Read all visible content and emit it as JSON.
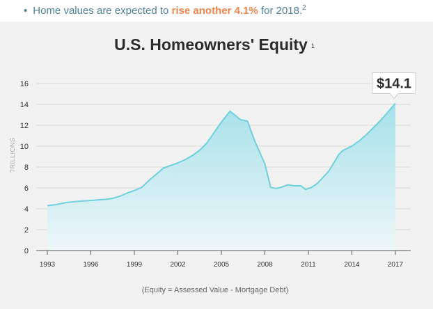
{
  "bullet": {
    "marker": "•",
    "text_before": "Home values are expected to ",
    "highlight": "rise another 4.1%",
    "text_after": " for 2018.",
    "footnote": "2"
  },
  "colors": {
    "line": "#6fd0dc",
    "fill_top": "#a6e1ea",
    "fill_bottom": "#eef7f9",
    "highlight": "#f0844a",
    "bullet_text": "#4a7f94",
    "panel_bg": "#f2f2f2"
  },
  "chart_data": {
    "type": "area",
    "title": "U.S. Homeowners' Equity",
    "title_footnote": "1",
    "ylabel": "TRILLIONS",
    "xlabel": "",
    "ylim": [
      0,
      16
    ],
    "xlim": [
      1993,
      2017
    ],
    "yticks": [
      "0",
      "2",
      "4",
      "6",
      "8",
      "10",
      "12",
      "14",
      "16"
    ],
    "xticks": [
      "1993",
      "1996",
      "1999",
      "2002",
      "2005",
      "2008",
      "2011",
      "2014",
      "2017"
    ],
    "grid": true,
    "callout": {
      "x": 2017,
      "y": 14.1,
      "label": "$14.1"
    },
    "note": "(Equity = Assessed Value - Mortgage Debt)",
    "series": [
      {
        "x": [
          1993,
          1993.6,
          1994.3,
          1995,
          1995.5,
          1996,
          1996.5,
          1997,
          1997.5,
          1998,
          1998.5,
          1999,
          1999.5,
          2000,
          2000.5,
          2001,
          2001.5,
          2002,
          2002.5,
          2003,
          2003.5,
          2004,
          2004.5,
          2005,
          2005.6,
          2006,
          2006.3,
          2006.8,
          2007.3,
          2008,
          2008.4,
          2008.8,
          2009.2,
          2009.6,
          2010,
          2010.5,
          2010.8,
          2011.2,
          2011.6,
          2012,
          2012.4,
          2012.8,
          2013.1,
          2013.4,
          2014,
          2014.5,
          2015,
          2015.5,
          2016,
          2016.5,
          2017
        ],
        "y": [
          4.3,
          4.4,
          4.6,
          4.7,
          4.75,
          4.8,
          4.85,
          4.9,
          5.0,
          5.2,
          5.5,
          5.75,
          6.05,
          6.7,
          7.3,
          7.9,
          8.15,
          8.4,
          8.7,
          9.1,
          9.6,
          10.3,
          11.3,
          12.3,
          13.35,
          12.9,
          12.55,
          12.4,
          10.5,
          8.3,
          6.05,
          5.95,
          6.1,
          6.3,
          6.2,
          6.2,
          5.85,
          6.05,
          6.4,
          7.0,
          7.6,
          8.5,
          9.2,
          9.6,
          10.0,
          10.5,
          11.1,
          11.8,
          12.5,
          13.3,
          14.1
        ]
      }
    ]
  }
}
